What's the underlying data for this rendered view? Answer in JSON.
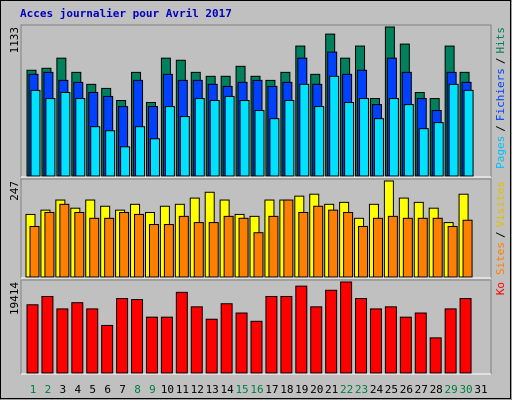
{
  "chart_data": {
    "type": "bar",
    "title": "Acces journalier pour Avril 2017",
    "categories": [
      "1",
      "2",
      "3",
      "4",
      "5",
      "6",
      "7",
      "8",
      "9",
      "10",
      "11",
      "12",
      "13",
      "14",
      "15",
      "16",
      "17",
      "18",
      "19",
      "20",
      "21",
      "22",
      "23",
      "24",
      "25",
      "26",
      "27",
      "28",
      "29",
      "30",
      "31"
    ],
    "category_colors": [
      "#008040",
      "#008040",
      "#000",
      "#000",
      "#000",
      "#000",
      "#000",
      "#008040",
      "#008040",
      "#000",
      "#000",
      "#000",
      "#000",
      "#000",
      "#008040",
      "#008040",
      "#000",
      "#000",
      "#000",
      "#000",
      "#000",
      "#008040",
      "#008040",
      "#000",
      "#000",
      "#000",
      "#000",
      "#000",
      "#008040",
      "#008040",
      "#000"
    ],
    "legend_separator": "/",
    "panels": [
      {
        "ylim": [
          0,
          1133
        ],
        "yticks": [
          1133
        ],
        "offsets": [
          -6,
          -4,
          -2
        ],
        "width": 9,
        "series": [
          {
            "name": "Hits",
            "color": "#00805c",
            "text_color": "#00805c",
            "values": [
              804,
              819,
              896,
              788,
              697,
              666,
              574,
              788,
              559,
              896,
              880,
              788,
              758,
              758,
              834,
              758,
              727,
              788,
              988,
              773,
              1079,
              896,
              988,
              589,
              1133,
              1003,
              635,
              589,
              988,
              788,
              null
            ]
          },
          {
            "name": "Fichiers",
            "color": "#0040ff",
            "text_color": "#0040ff",
            "values": [
              773,
              788,
              727,
              712,
              635,
              605,
              528,
              727,
              528,
              773,
              727,
              727,
              697,
              681,
              712,
              727,
              681,
              712,
              896,
              697,
              942,
              773,
              804,
              543,
              896,
              788,
              589,
              498,
              788,
              712,
              null
            ]
          },
          {
            "name": "Pages",
            "color": "#00e0ff",
            "text_color": "#00c0ff",
            "values": [
              651,
              589,
              635,
              589,
              375,
              344,
              222,
              375,
              283,
              528,
              452,
              589,
              574,
              605,
              574,
              498,
              436,
              574,
              697,
              528,
              758,
              559,
              589,
              436,
              589,
              543,
              360,
              406,
              697,
              651,
              null
            ]
          }
        ]
      },
      {
        "ylim": [
          0,
          247
        ],
        "yticks": [
          247
        ],
        "offsets": [
          -7,
          -3
        ],
        "width": 9,
        "series": [
          {
            "name": "Visites",
            "color": "#ffff00",
            "text_color": "#e0c000",
            "values": [
              161,
              172,
              198,
              177,
              198,
              182,
              172,
              187,
              166,
              182,
              187,
              203,
              218,
              198,
              161,
              156,
              198,
              198,
              208,
              213,
              187,
              192,
              151,
              187,
              247,
              203,
              192,
              177,
              140,
              213,
              null
            ]
          },
          {
            "name": "Sites",
            "color": "#ff8000",
            "text_color": "#ff8000",
            "values": [
              130,
              166,
              187,
              166,
              151,
              151,
              166,
              161,
              135,
              135,
              156,
              140,
              140,
              156,
              151,
              114,
              156,
              198,
              166,
              182,
              172,
              166,
              130,
              151,
              156,
              151,
              151,
              151,
              130,
              146,
              null
            ]
          }
        ]
      },
      {
        "ylim": [
          0,
          19414
        ],
        "yticks": [
          19414
        ],
        "offsets": [
          -6
        ],
        "width": 11,
        "series": [
          {
            "name": "Ko",
            "color": "#ff0000",
            "text_color": "#ff0000",
            "values": [
              14560,
              16324,
              13677,
              15001,
              13677,
              10148,
              15883,
              15663,
              11912,
              11912,
              17207,
              14118,
              11471,
              14780,
              12795,
              11030,
              16324,
              16324,
              18530,
              14118,
              17648,
              19414,
              15883,
              13677,
              14118,
              11912,
              12795,
              7500,
              13677,
              15883,
              null
            ]
          }
        ]
      }
    ]
  }
}
